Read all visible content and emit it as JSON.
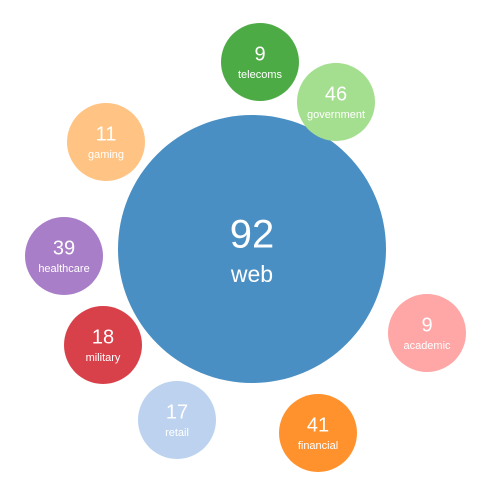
{
  "chart_data": {
    "type": "bubble",
    "items": [
      {
        "label": "web",
        "value": 92,
        "color": "#4a8fc3"
      },
      {
        "label": "telecoms",
        "value": 9,
        "color": "#4dab45"
      },
      {
        "label": "government",
        "value": 46,
        "color": "#a4de8f"
      },
      {
        "label": "gaming",
        "value": 11,
        "color": "#ffc383"
      },
      {
        "label": "healthcare",
        "value": 39,
        "color": "#a97ec8"
      },
      {
        "label": "military",
        "value": 18,
        "color": "#d9414a"
      },
      {
        "label": "retail",
        "value": 17,
        "color": "#bcd2ee"
      },
      {
        "label": "financial",
        "value": 41,
        "color": "#ff922d"
      },
      {
        "label": "academic",
        "value": 9,
        "color": "#ffa6a6"
      }
    ]
  }
}
